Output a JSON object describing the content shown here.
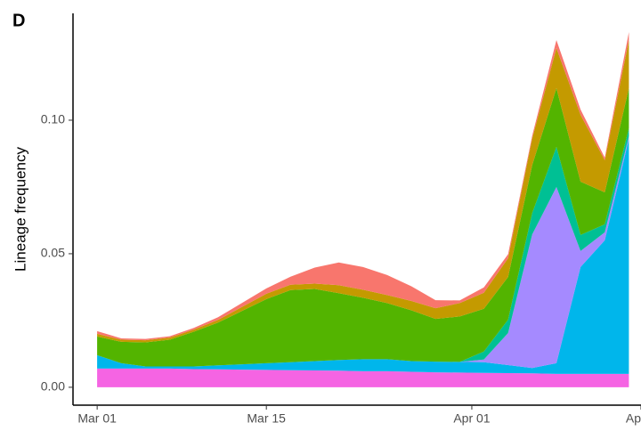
{
  "chart_data": {
    "type": "stacked-area",
    "panel_label": "D",
    "ylabel": "Lineage frequency",
    "x": [
      "Mar 01",
      "Mar 03",
      "Mar 05",
      "Mar 07",
      "Mar 09",
      "Mar 11",
      "Mar 13",
      "Mar 15",
      "Mar 17",
      "Mar 19",
      "Mar 21",
      "Mar 23",
      "Mar 25",
      "Mar 27",
      "Mar 29",
      "Mar 31",
      "Apr 02",
      "Apr 04",
      "Apr 06",
      "Apr 08",
      "Apr 10",
      "Apr 12",
      "Apr 14"
    ],
    "series": [
      {
        "color": "#F564E3",
        "values": [
          0.007,
          0.007,
          0.007,
          0.007,
          0.0068,
          0.0067,
          0.0066,
          0.0065,
          0.0064,
          0.0063,
          0.0062,
          0.006,
          0.006,
          0.0058,
          0.0056,
          0.0055,
          0.0054,
          0.0053,
          0.0052,
          0.005,
          0.005,
          0.005,
          0.005
        ]
      },
      {
        "color": "#00B6EB",
        "values": [
          0.005,
          0.002,
          0.0008,
          0.0008,
          0.001,
          0.0015,
          0.002,
          0.0025,
          0.003,
          0.0035,
          0.004,
          0.0045,
          0.0045,
          0.004,
          0.004,
          0.004,
          0.004,
          0.003,
          0.002,
          0.004,
          0.04,
          0.05,
          0.088
        ]
      },
      {
        "color": "#A58AFF",
        "values": [
          0,
          0,
          0,
          0,
          0,
          0,
          0,
          0,
          0,
          0,
          0,
          0,
          0,
          0,
          0,
          0,
          0.001,
          0.012,
          0.05,
          0.066,
          0.006,
          0.003,
          0.001
        ]
      },
      {
        "color": "#00C094",
        "values": [
          0,
          0,
          0,
          0,
          0,
          0,
          0,
          0,
          0,
          0,
          0,
          0,
          0,
          0,
          0,
          0,
          0.003,
          0.005,
          0.008,
          0.015,
          0.006,
          0.003,
          0.003
        ]
      },
      {
        "color": "#53B400",
        "values": [
          0.007,
          0.008,
          0.009,
          0.01,
          0.013,
          0.016,
          0.02,
          0.024,
          0.027,
          0.027,
          0.025,
          0.023,
          0.021,
          0.019,
          0.016,
          0.017,
          0.016,
          0.016,
          0.018,
          0.022,
          0.02,
          0.012,
          0.015
        ]
      },
      {
        "color": "#C49A00",
        "values": [
          0.001,
          0.0008,
          0.0008,
          0.0008,
          0.0008,
          0.001,
          0.0015,
          0.002,
          0.002,
          0.002,
          0.003,
          0.003,
          0.003,
          0.0035,
          0.004,
          0.005,
          0.006,
          0.007,
          0.01,
          0.015,
          0.025,
          0.012,
          0.018
        ]
      },
      {
        "color": "#F8766D",
        "values": [
          0.001,
          0.0005,
          0.0005,
          0.0005,
          0.0006,
          0.001,
          0.0015,
          0.002,
          0.003,
          0.006,
          0.0085,
          0.0085,
          0.0075,
          0.0055,
          0.003,
          0.001,
          0.002,
          0.0015,
          0.001,
          0.003,
          0.002,
          0.001,
          0.003
        ]
      }
    ],
    "xlim": [
      "Feb 27",
      "Apr 15"
    ],
    "xticks": [
      "Mar 01",
      "Mar 15",
      "Apr 01",
      {
        "value": "Apr 15",
        "label": "Ap"
      }
    ],
    "ylim": [
      -0.0067,
      0.14
    ],
    "yticks": [
      {
        "value": 0,
        "label": "0.00"
      },
      {
        "value": 0.05,
        "label": "0.05"
      },
      {
        "value": 0.1,
        "label": "0.10"
      }
    ]
  }
}
